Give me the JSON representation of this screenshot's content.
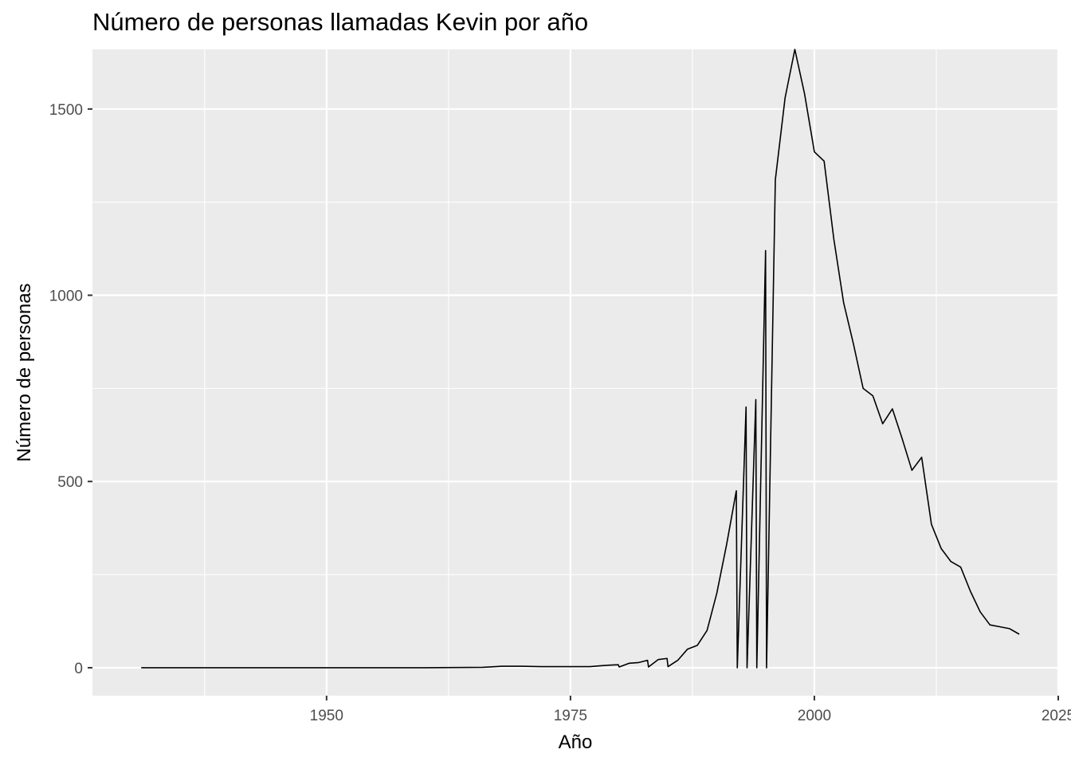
{
  "chart_data": {
    "type": "line",
    "title": "Número de personas llamadas Kevin por año",
    "xlabel": "Año",
    "ylabel": "Número de personas",
    "xlim": [
      1926,
      2025
    ],
    "ylim": [
      -75,
      1660
    ],
    "x_ticks": [
      1950,
      1975,
      2000,
      2025
    ],
    "y_ticks": [
      0,
      500,
      1000,
      1500
    ],
    "grid": true,
    "legend": "none",
    "colors": {
      "panel": "#ebebeb",
      "grid": "#ffffff",
      "line": "#000000"
    },
    "series": [
      {
        "x": [
          1931,
          1940,
          1950,
          1960,
          1966,
          1968,
          1970,
          1972,
          1975,
          1977,
          1978,
          1979,
          1979.9,
          1980,
          1981,
          1982,
          1982.9,
          1983,
          1984,
          1984.9,
          1985,
          1986,
          1987,
          1988,
          1989,
          1990,
          1991,
          1992,
          1992.1,
          1993,
          1993.1,
          1994,
          1994.1,
          1995,
          1995.1,
          1996,
          1997,
          1998,
          1999,
          2000,
          2001,
          2002,
          2003,
          2004,
          2005,
          2006,
          2007,
          2008,
          2009,
          2010,
          2011,
          2012,
          2013,
          2014,
          2015,
          2016,
          2017,
          2018,
          2019,
          2020,
          2021
        ],
        "y": [
          0,
          0,
          0,
          0,
          1,
          4,
          4,
          3,
          3,
          3,
          5,
          7,
          8,
          2,
          12,
          14,
          20,
          2,
          22,
          25,
          3,
          20,
          50,
          60,
          100,
          200,
          330,
          475,
          0,
          700,
          0,
          720,
          0,
          1120,
          0,
          1310,
          1530,
          1660,
          1540,
          1385,
          1360,
          1150,
          980,
          870,
          750,
          730,
          655,
          695,
          615,
          530,
          565,
          385,
          320,
          285,
          270,
          205,
          150,
          115,
          110,
          105,
          90
        ]
      }
    ]
  }
}
